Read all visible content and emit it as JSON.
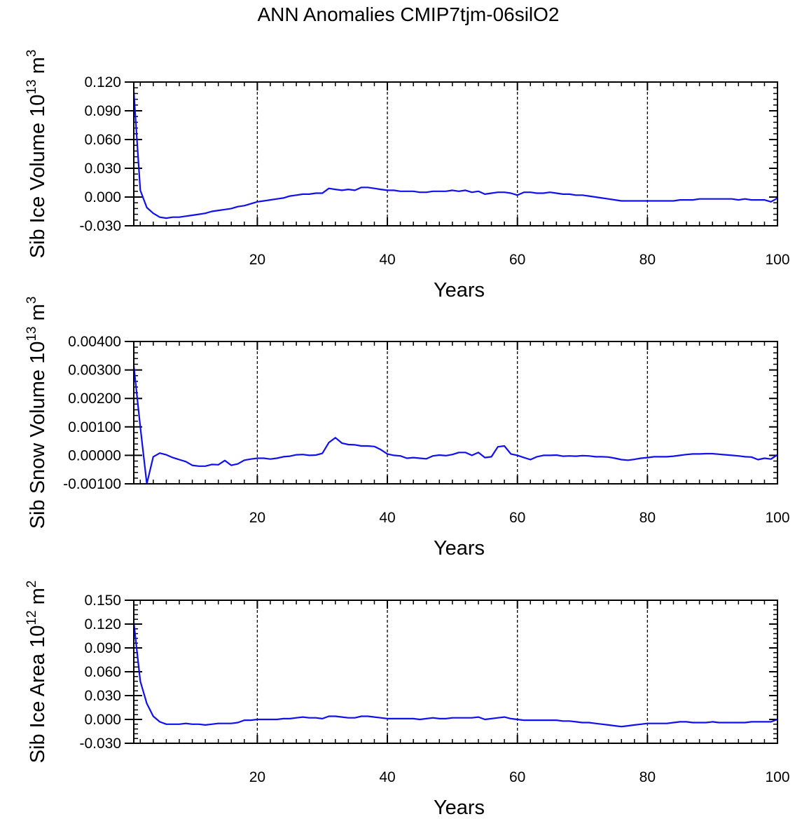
{
  "title": "ANN Anomalies CMIP7tjm-06silO2",
  "colors": {
    "line": "#1010ee",
    "axis": "#000000",
    "grid": "#000000"
  },
  "chart_data": [
    {
      "type": "line",
      "xlabel": "Years",
      "ylabel": {
        "text": "Sib Ice Volume 10",
        "exp": "13",
        "unit": " m",
        "unit_exp": "3"
      },
      "xlim": [
        1,
        100
      ],
      "ylim": [
        -0.03,
        0.12
      ],
      "x_ticks": [
        20,
        40,
        60,
        80,
        100
      ],
      "y_ticks": [
        -0.03,
        0,
        0.03,
        0.06,
        0.09,
        0.12
      ],
      "y_tick_labels": [
        "-0.030",
        "0.000",
        "0.030",
        "0.060",
        "0.090",
        "0.120"
      ],
      "y_minor_step": 0.006,
      "grid": "vertical dashed at x ticks",
      "series": [
        {
          "x": [
            1,
            2,
            3,
            4,
            5,
            6,
            7,
            8,
            9,
            10,
            11,
            12,
            13,
            14,
            15,
            16,
            17,
            18,
            19,
            20,
            21,
            22,
            23,
            24,
            25,
            26,
            27,
            28,
            29,
            30,
            31,
            32,
            33,
            34,
            35,
            36,
            37,
            38,
            39,
            40,
            41,
            42,
            43,
            44,
            45,
            46,
            47,
            48,
            49,
            50,
            51,
            52,
            53,
            54,
            55,
            56,
            57,
            58,
            59,
            60,
            61,
            62,
            63,
            64,
            65,
            66,
            67,
            68,
            69,
            70,
            71,
            72,
            73,
            74,
            75,
            76,
            77,
            78,
            79,
            80,
            81,
            82,
            83,
            84,
            85,
            86,
            87,
            88,
            89,
            90,
            91,
            92,
            93,
            94,
            95,
            96,
            97,
            98,
            99,
            100
          ],
          "values": [
            0.11,
            0.007,
            -0.011,
            -0.017,
            -0.021,
            -0.022,
            -0.021,
            -0.021,
            -0.02,
            -0.019,
            -0.018,
            -0.017,
            -0.015,
            -0.014,
            -0.013,
            -0.012,
            -0.01,
            -0.009,
            -0.007,
            -0.005,
            -0.004,
            -0.003,
            -0.002,
            -0.001,
            0.001,
            0.002,
            0.003,
            0.003,
            0.004,
            0.004,
            0.009,
            0.008,
            0.007,
            0.008,
            0.007,
            0.01,
            0.01,
            0.009,
            0.008,
            0.007,
            0.007,
            0.006,
            0.006,
            0.006,
            0.005,
            0.005,
            0.006,
            0.006,
            0.006,
            0.007,
            0.006,
            0.007,
            0.005,
            0.006,
            0.003,
            0.004,
            0.005,
            0.005,
            0.004,
            0.002,
            0.005,
            0.005,
            0.004,
            0.004,
            0.005,
            0.004,
            0.003,
            0.003,
            0.002,
            0.002,
            0.001,
            0.0,
            -0.001,
            -0.002,
            -0.003,
            -0.004,
            -0.004,
            -0.004,
            -0.004,
            -0.004,
            -0.004,
            -0.004,
            -0.004,
            -0.004,
            -0.003,
            -0.003,
            -0.003,
            -0.002,
            -0.002,
            -0.002,
            -0.002,
            -0.002,
            -0.002,
            -0.003,
            -0.002,
            -0.003,
            -0.003,
            -0.003,
            -0.005,
            -0.001
          ]
        }
      ]
    },
    {
      "type": "line",
      "xlabel": "Years",
      "ylabel": {
        "text": "Sib Snow Volume 10",
        "exp": "13",
        "unit": " m",
        "unit_exp": "3"
      },
      "xlim": [
        1,
        100
      ],
      "ylim": [
        -0.001,
        0.004
      ],
      "x_ticks": [
        20,
        40,
        60,
        80,
        100
      ],
      "y_ticks": [
        -0.001,
        0,
        0.001,
        0.002,
        0.003,
        0.004
      ],
      "y_tick_labels": [
        "-0.00100",
        "0.00000",
        "0.00100",
        "0.00200",
        "0.00300",
        "0.00400"
      ],
      "y_minor_step": 0.0002,
      "grid": "vertical dashed at x ticks",
      "series": [
        {
          "x": [
            1,
            2,
            3,
            4,
            5,
            6,
            7,
            8,
            9,
            10,
            11,
            12,
            13,
            14,
            15,
            16,
            17,
            18,
            19,
            20,
            21,
            22,
            23,
            24,
            25,
            26,
            27,
            28,
            29,
            30,
            31,
            32,
            33,
            34,
            35,
            36,
            37,
            38,
            39,
            40,
            41,
            42,
            43,
            44,
            45,
            46,
            47,
            48,
            49,
            50,
            51,
            52,
            53,
            54,
            55,
            56,
            57,
            58,
            59,
            60,
            61,
            62,
            63,
            64,
            65,
            66,
            67,
            68,
            69,
            70,
            71,
            72,
            73,
            74,
            75,
            76,
            77,
            78,
            79,
            80,
            81,
            82,
            83,
            84,
            85,
            86,
            87,
            88,
            89,
            90,
            91,
            92,
            93,
            94,
            95,
            96,
            97,
            98,
            99,
            100
          ],
          "values": [
            0.00315,
            0.001,
            -0.001,
            -5e-05,
            8e-05,
            2e-05,
            -8e-05,
            -0.00015,
            -0.00022,
            -0.00035,
            -0.00038,
            -0.00038,
            -0.00032,
            -0.00033,
            -0.00018,
            -0.00035,
            -0.0003,
            -0.00017,
            -0.00013,
            -0.0001,
            -0.0001,
            -0.00013,
            -0.0001,
            -5e-05,
            -3e-05,
            2e-05,
            3e-05,
            0.0,
            1e-05,
            7e-05,
            0.00045,
            0.00062,
            0.00043,
            0.00038,
            0.00037,
            0.00033,
            0.00033,
            0.00031,
            0.0002,
            5e-05,
            0.0,
            -2e-05,
            -0.0001,
            -8e-05,
            -0.0001,
            -0.00012,
            -2e-05,
            1e-05,
            -1e-05,
            3e-05,
            0.0001,
            0.0001,
            0.0,
            0.0001,
            -8e-05,
            -5e-05,
            0.0003,
            0.00033,
            5e-05,
            0.0,
            -8e-05,
            -0.00015,
            -5e-05,
            0.0,
            0.0,
            1e-05,
            -3e-05,
            -2e-05,
            -3e-05,
            -1e-05,
            -2e-05,
            -5e-05,
            -5e-05,
            -6e-05,
            -0.0001,
            -0.00015,
            -0.00017,
            -0.00014,
            -0.0001,
            -8e-05,
            -5e-05,
            -5e-05,
            -5e-05,
            -3e-05,
            0.0,
            3e-05,
            5e-05,
            5e-05,
            6e-05,
            6e-05,
            4e-05,
            2e-05,
            0.0,
            -2e-05,
            -5e-05,
            -6e-05,
            -0.00015,
            -0.0001,
            -0.00013,
            2e-05
          ]
        }
      ]
    },
    {
      "type": "line",
      "xlabel": "Years",
      "ylabel": {
        "text": "Sib Ice Area 10",
        "exp": "12",
        "unit": " m",
        "unit_exp": "2"
      },
      "xlim": [
        1,
        100
      ],
      "ylim": [
        -0.03,
        0.15
      ],
      "x_ticks": [
        20,
        40,
        60,
        80,
        100
      ],
      "y_ticks": [
        -0.03,
        0,
        0.03,
        0.06,
        0.09,
        0.12,
        0.15
      ],
      "y_tick_labels": [
        "-0.030",
        "0.000",
        "0.030",
        "0.060",
        "0.090",
        "0.120",
        "0.150"
      ],
      "y_minor_step": 0.006,
      "grid": "vertical dashed at x ticks",
      "series": [
        {
          "x": [
            1,
            2,
            3,
            4,
            5,
            6,
            7,
            8,
            9,
            10,
            11,
            12,
            13,
            14,
            15,
            16,
            17,
            18,
            19,
            20,
            21,
            22,
            23,
            24,
            25,
            26,
            27,
            28,
            29,
            30,
            31,
            32,
            33,
            34,
            35,
            36,
            37,
            38,
            39,
            40,
            41,
            42,
            43,
            44,
            45,
            46,
            47,
            48,
            49,
            50,
            51,
            52,
            53,
            54,
            55,
            56,
            57,
            58,
            59,
            60,
            61,
            62,
            63,
            64,
            65,
            66,
            67,
            68,
            69,
            70,
            71,
            72,
            73,
            74,
            75,
            76,
            77,
            78,
            79,
            80,
            81,
            82,
            83,
            84,
            85,
            86,
            87,
            88,
            89,
            90,
            91,
            92,
            93,
            94,
            95,
            96,
            97,
            98,
            99,
            100
          ],
          "values": [
            0.122,
            0.048,
            0.02,
            0.004,
            -0.003,
            -0.006,
            -0.006,
            -0.006,
            -0.005,
            -0.006,
            -0.006,
            -0.007,
            -0.006,
            -0.005,
            -0.005,
            -0.005,
            -0.004,
            -0.001,
            -0.001,
            0.0,
            0.0,
            0.0,
            0.0,
            0.001,
            0.001,
            0.002,
            0.003,
            0.002,
            0.002,
            0.001,
            0.004,
            0.004,
            0.003,
            0.002,
            0.002,
            0.004,
            0.004,
            0.003,
            0.002,
            0.001,
            0.001,
            0.001,
            0.001,
            0.001,
            0.0,
            0.001,
            0.002,
            0.001,
            0.001,
            0.002,
            0.002,
            0.002,
            0.002,
            0.003,
            0.0,
            0.001,
            0.002,
            0.003,
            0.001,
            0.0,
            -0.001,
            -0.001,
            -0.001,
            -0.001,
            -0.001,
            -0.001,
            -0.002,
            -0.002,
            -0.003,
            -0.004,
            -0.004,
            -0.005,
            -0.006,
            -0.007,
            -0.008,
            -0.009,
            -0.008,
            -0.007,
            -0.006,
            -0.005,
            -0.005,
            -0.005,
            -0.005,
            -0.004,
            -0.003,
            -0.003,
            -0.004,
            -0.004,
            -0.004,
            -0.003,
            -0.004,
            -0.004,
            -0.004,
            -0.004,
            -0.004,
            -0.003,
            -0.003,
            -0.003,
            -0.003,
            0.0
          ]
        }
      ]
    }
  ]
}
